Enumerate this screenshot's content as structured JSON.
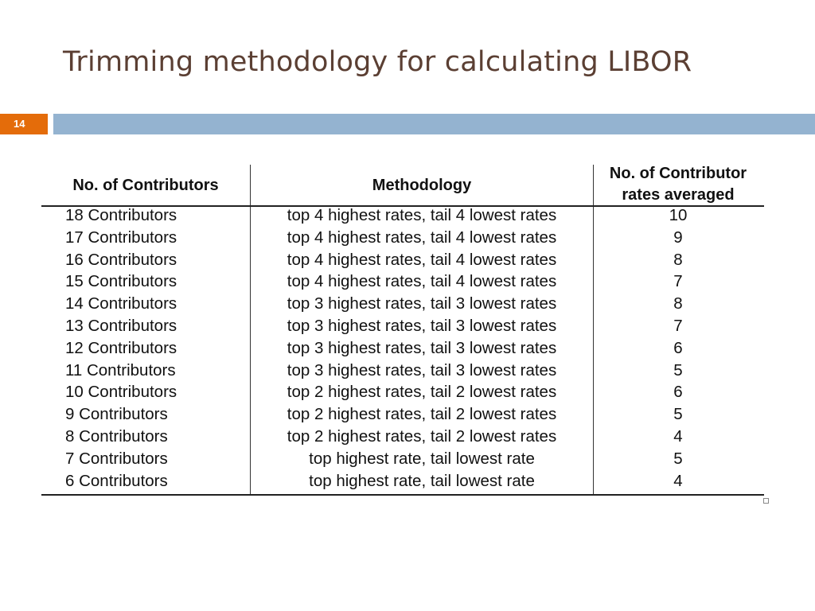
{
  "slide": {
    "title": "Trimming methodology for calculating LIBOR",
    "page_number": "14",
    "accent_color": "#e46c0a",
    "bar_color": "#94b3d0",
    "title_color": "#5b3f33"
  },
  "table": {
    "headers": {
      "contributors": "No. of Contributors",
      "methodology": "Methodology",
      "averaged_line1": "No. of Contributor",
      "averaged_line2": "rates averaged"
    },
    "rows": [
      {
        "contributors": "18 Contributors",
        "methodology": "top 4 highest rates, tail 4 lowest rates",
        "averaged": "10"
      },
      {
        "contributors": "17 Contributors",
        "methodology": "top 4 highest rates, tail 4 lowest rates",
        "averaged": "9"
      },
      {
        "contributors": "16 Contributors",
        "methodology": "top 4 highest rates, tail 4 lowest rates",
        "averaged": "8"
      },
      {
        "contributors": "15 Contributors",
        "methodology": "top 4 highest rates, tail 4 lowest rates",
        "averaged": "7"
      },
      {
        "contributors": "14 Contributors",
        "methodology": "top 3 highest rates, tail 3 lowest rates",
        "averaged": "8"
      },
      {
        "contributors": "13 Contributors",
        "methodology": "top 3 highest rates, tail 3 lowest rates",
        "averaged": "7"
      },
      {
        "contributors": "12 Contributors",
        "methodology": "top 3 highest rates, tail 3 lowest rates",
        "averaged": "6"
      },
      {
        "contributors": "11 Contributors",
        "methodology": "top 3 highest rates, tail 3 lowest rates",
        "averaged": "5"
      },
      {
        "contributors": "10 Contributors",
        "methodology": "top 2 highest rates, tail 2 lowest rates",
        "averaged": "6"
      },
      {
        "contributors": "9 Contributors",
        "methodology": "top 2 highest rates, tail 2 lowest rates",
        "averaged": "5"
      },
      {
        "contributors": "8 Contributors",
        "methodology": "top 2 highest rates, tail 2 lowest rates",
        "averaged": "4"
      },
      {
        "contributors": "7 Contributors",
        "methodology": "top highest rate, tail lowest rate",
        "averaged": "5"
      },
      {
        "contributors": "6 Contributors",
        "methodology": "top highest rate, tail lowest rate",
        "averaged": "4"
      }
    ]
  }
}
